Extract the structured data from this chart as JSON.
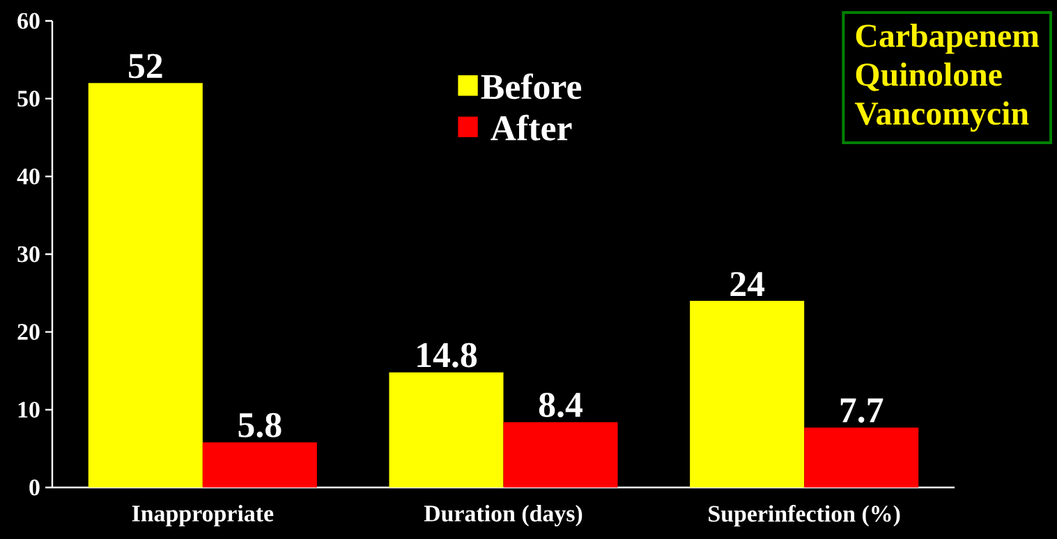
{
  "chart_data": {
    "type": "bar",
    "categories": [
      "Inappropriate",
      "Duration (days)",
      "Superinfection (%)"
    ],
    "series": [
      {
        "name": "Before",
        "color": "#ffff00",
        "values": [
          52,
          14.8,
          24
        ]
      },
      {
        "name": "After",
        "color": "#ff0000",
        "values": [
          5.8,
          8.4,
          7.7
        ]
      }
    ],
    "ylim": [
      0,
      60
    ],
    "yticks": [
      0,
      10,
      20,
      30,
      40,
      50,
      60
    ],
    "data_labels": true,
    "legend": "top",
    "grid": false,
    "annotations": [
      "Carbapenem",
      "Quinolone",
      "Vancomycin"
    ]
  }
}
